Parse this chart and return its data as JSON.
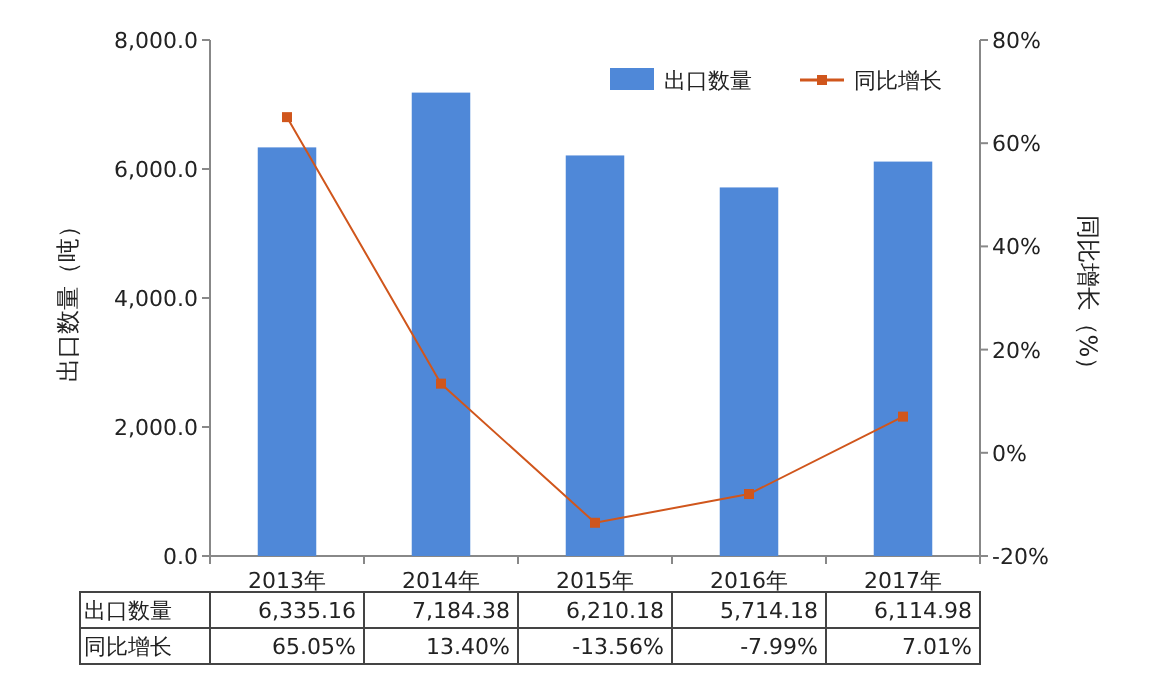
{
  "chart_data": {
    "type": "bar",
    "categories": [
      "2013年",
      "2014年",
      "2015年",
      "2016年",
      "2017年"
    ],
    "ylabel": "出口数量（吨）",
    "y2label": "同比增长（%）",
    "ylim": [
      0,
      8000
    ],
    "yticks": [
      {
        "value": 0,
        "label": "0.0"
      },
      {
        "value": 2000,
        "label": "2,000.0"
      },
      {
        "value": 4000,
        "label": "4,000.0"
      },
      {
        "value": 6000,
        "label": "6,000.0"
      },
      {
        "value": 8000,
        "label": "8,000.0"
      }
    ],
    "y2lim": [
      -20,
      80
    ],
    "y2ticks": [
      {
        "value": -20,
        "label": "-20%"
      },
      {
        "value": 0,
        "label": "0%"
      },
      {
        "value": 20,
        "label": "20%"
      },
      {
        "value": 40,
        "label": "40%"
      },
      {
        "value": 60,
        "label": "60%"
      },
      {
        "value": 80,
        "label": "80%"
      }
    ],
    "legend": "top right",
    "series": [
      {
        "name": "出口数量",
        "color": "#4f88d8",
        "values": [
          6335.16,
          7184.38,
          6210.18,
          5714.18,
          6114.98
        ],
        "value_labels": [
          "6,335.16",
          "7,184.38",
          "6,210.18",
          "5,714.18",
          "6,114.98"
        ]
      },
      {
        "name": "同比增长",
        "type": "line",
        "axis": "y2",
        "marker": "square",
        "color": "#d0561c",
        "values": [
          65.05,
          13.4,
          -13.56,
          -7.99,
          7.01
        ],
        "value_labels": [
          "65.05%",
          "13.40%",
          "-13.56%",
          "-7.99%",
          "7.01%"
        ]
      }
    ]
  }
}
